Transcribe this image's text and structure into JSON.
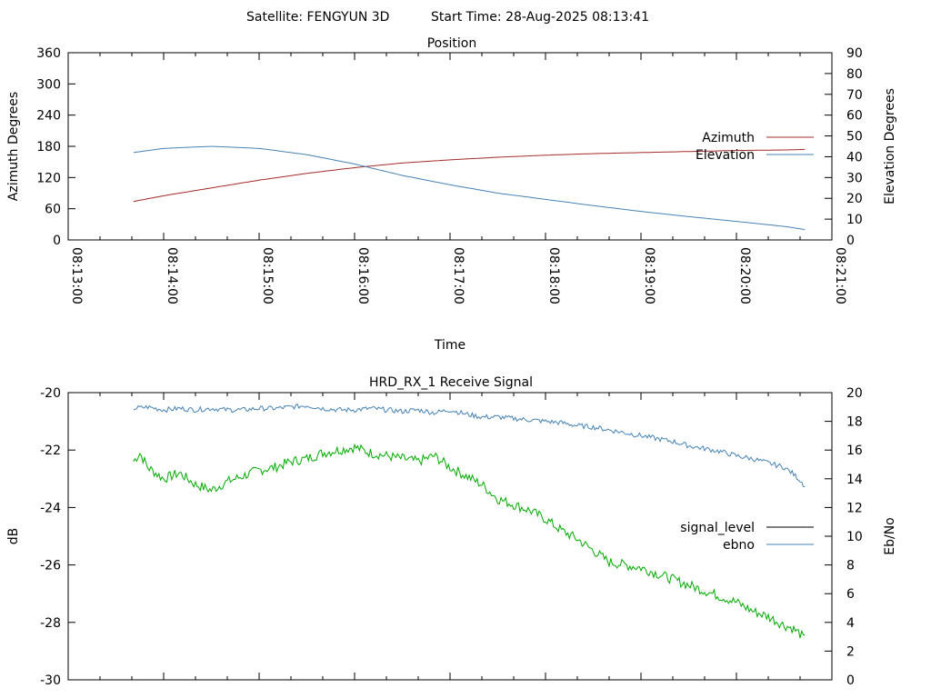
{
  "header": {
    "satellite_label": "Satellite: FENGYUN 3D",
    "start_time_label": "Start Time: 28-Aug-2025 08:13:41"
  },
  "colors": {
    "azimuth": "#a52a2a",
    "elevation": "#4682b4",
    "signal_level": "#000000",
    "ebno": "#4682b4",
    "signal_trace": "#00aa00",
    "axes": "#000000"
  },
  "chart_data": [
    {
      "type": "line",
      "title": "Position",
      "xlabel": "Time",
      "ylabel": "Azimuth Degrees",
      "y2label": "Elevation Degrees",
      "x_ticks": [
        "08:13:00",
        "08:14:00",
        "08:15:00",
        "08:16:00",
        "08:17:00",
        "08:18:00",
        "08:19:00",
        "08:20:00",
        "08:21:00"
      ],
      "xlim": [
        "08:13:00",
        "08:21:00"
      ],
      "ylim": [
        0,
        360
      ],
      "y_ticks": [
        0,
        60,
        120,
        180,
        240,
        300,
        360
      ],
      "y2lim": [
        0,
        90
      ],
      "y2_ticks": [
        0,
        10,
        20,
        30,
        40,
        50,
        60,
        70,
        80,
        90
      ],
      "legend_position": "right",
      "grid": false,
      "series": [
        {
          "name": "Azimuth",
          "axis": "y",
          "x": [
            "08:13:41",
            "08:14:00",
            "08:14:30",
            "08:15:00",
            "08:15:30",
            "08:16:00",
            "08:16:30",
            "08:17:00",
            "08:17:30",
            "08:18:00",
            "08:18:30",
            "08:19:00",
            "08:19:30",
            "08:20:00",
            "08:20:30",
            "08:20:43"
          ],
          "values": [
            74,
            85,
            100,
            115,
            128,
            139,
            148,
            154,
            159,
            163,
            166,
            168,
            170,
            172,
            173,
            174
          ]
        },
        {
          "name": "Elevation",
          "axis": "y2",
          "x": [
            "08:13:41",
            "08:14:00",
            "08:14:30",
            "08:15:00",
            "08:15:30",
            "08:16:00",
            "08:16:30",
            "08:17:00",
            "08:17:30",
            "08:18:00",
            "08:18:30",
            "08:19:00",
            "08:19:30",
            "08:20:00",
            "08:20:30",
            "08:20:43"
          ],
          "values": [
            42,
            44,
            45,
            44,
            41,
            36.5,
            31,
            26.5,
            22.5,
            19.5,
            16.5,
            13.7,
            11.2,
            8.9,
            6.5,
            5
          ]
        }
      ]
    },
    {
      "type": "line",
      "title": "HRD_RX_1 Receive Signal",
      "xlabel": "",
      "ylabel": "dB",
      "y2label": "Eb/No",
      "ylim": [
        -30,
        -20
      ],
      "y_ticks": [
        -30,
        -28,
        -26,
        -24,
        -22,
        -20
      ],
      "y2lim": [
        0,
        20
      ],
      "y2_ticks": [
        0,
        2,
        4,
        6,
        8,
        10,
        12,
        14,
        16,
        18,
        20
      ],
      "xlim": [
        "08:13:00",
        "08:21:00"
      ],
      "legend_position": "right",
      "grid": false,
      "series": [
        {
          "name": "signal_level",
          "axis": "y",
          "x": [
            "08:13:41",
            "08:13:45",
            "08:13:50",
            "08:14:00",
            "08:14:10",
            "08:14:20",
            "08:14:30",
            "08:14:40",
            "08:14:50",
            "08:15:00",
            "08:15:10",
            "08:15:20",
            "08:15:30",
            "08:15:40",
            "08:15:50",
            "08:16:00",
            "08:16:10",
            "08:16:20",
            "08:16:30",
            "08:16:40",
            "08:16:50",
            "08:17:00",
            "08:17:10",
            "08:17:20",
            "08:17:30",
            "08:17:40",
            "08:17:50",
            "08:18:00",
            "08:18:10",
            "08:18:20",
            "08:18:30",
            "08:18:40",
            "08:18:50",
            "08:19:00",
            "08:19:10",
            "08:19:20",
            "08:19:30",
            "08:19:40",
            "08:19:50",
            "08:20:00",
            "08:20:10",
            "08:20:20",
            "08:20:30",
            "08:20:35",
            "08:20:40",
            "08:20:43"
          ],
          "values": [
            -22.4,
            -22.1,
            -22.6,
            -23.0,
            -22.8,
            -23.2,
            -23.4,
            -23.1,
            -22.9,
            -22.7,
            -22.6,
            -22.4,
            -22.3,
            -22.1,
            -22.0,
            -21.9,
            -22.1,
            -22.2,
            -22.3,
            -22.4,
            -22.2,
            -22.6,
            -22.9,
            -23.2,
            -23.7,
            -23.9,
            -24.1,
            -24.4,
            -24.8,
            -25.1,
            -25.5,
            -25.9,
            -26.0,
            -26.1,
            -26.3,
            -26.5,
            -26.7,
            -26.9,
            -27.1,
            -27.3,
            -27.6,
            -27.8,
            -28.1,
            -28.2,
            -28.4,
            -28.6
          ]
        },
        {
          "name": "ebno",
          "axis": "y2",
          "x": [
            "08:13:41",
            "08:13:50",
            "08:14:00",
            "08:14:10",
            "08:14:20",
            "08:14:30",
            "08:14:40",
            "08:14:50",
            "08:15:00",
            "08:15:10",
            "08:15:20",
            "08:15:30",
            "08:15:40",
            "08:15:50",
            "08:16:00",
            "08:16:10",
            "08:16:20",
            "08:16:30",
            "08:16:40",
            "08:16:50",
            "08:17:00",
            "08:17:10",
            "08:17:20",
            "08:17:30",
            "08:17:40",
            "08:17:50",
            "08:18:00",
            "08:18:10",
            "08:18:20",
            "08:18:30",
            "08:18:40",
            "08:18:50",
            "08:19:00",
            "08:19:10",
            "08:19:20",
            "08:19:30",
            "08:19:40",
            "08:19:50",
            "08:20:00",
            "08:20:10",
            "08:20:20",
            "08:20:30",
            "08:20:35",
            "08:20:40",
            "08:20:43"
          ],
          "values": [
            18.9,
            19.0,
            18.8,
            18.9,
            18.8,
            18.9,
            18.8,
            18.8,
            18.9,
            18.9,
            19.0,
            19.1,
            18.9,
            18.8,
            18.8,
            18.9,
            18.8,
            18.7,
            18.8,
            18.6,
            18.8,
            18.5,
            18.3,
            18.3,
            18.2,
            18.1,
            18.0,
            17.9,
            17.7,
            17.6,
            17.4,
            17.2,
            17.0,
            16.8,
            16.6,
            16.3,
            16.1,
            15.9,
            15.6,
            15.4,
            15.1,
            14.8,
            14.4,
            13.9,
            13.5
          ]
        }
      ]
    }
  ]
}
